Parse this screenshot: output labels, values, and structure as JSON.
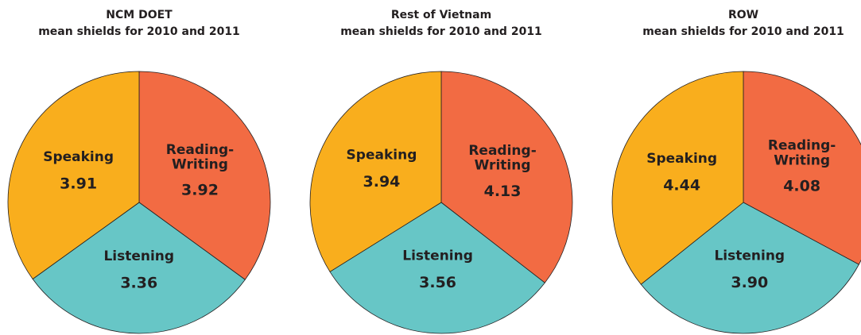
{
  "chart_data": [
    {
      "type": "pie",
      "title": "NCM DOET",
      "subtitle": "mean shields for 2010 and 2011",
      "categories": [
        "Reading-Writing",
        "Listening",
        "Speaking"
      ],
      "values": [
        3.92,
        3.36,
        3.91
      ],
      "value_labels": [
        "3.92",
        "3.36",
        "3.91"
      ],
      "colors": [
        "#f26b43",
        "#67c6c6",
        "#f9ae1d"
      ]
    },
    {
      "type": "pie",
      "title": "Rest of Vietnam",
      "subtitle": "mean shields for 2010 and 2011",
      "categories": [
        "Reading-Writing",
        "Listening",
        "Speaking"
      ],
      "values": [
        4.13,
        3.56,
        3.94
      ],
      "value_labels": [
        "4.13",
        "3.56",
        "3.94"
      ],
      "colors": [
        "#f26b43",
        "#67c6c6",
        "#f9ae1d"
      ]
    },
    {
      "type": "pie",
      "title": "ROW",
      "subtitle": "mean shields for 2010 and 2011",
      "categories": [
        "Reading-Writing",
        "Listening",
        "Speaking"
      ],
      "values": [
        4.08,
        3.9,
        4.44
      ],
      "value_labels": [
        "4.08",
        "3.90",
        "4.44"
      ],
      "colors": [
        "#f26b43",
        "#67c6c6",
        "#f9ae1d"
      ]
    }
  ]
}
